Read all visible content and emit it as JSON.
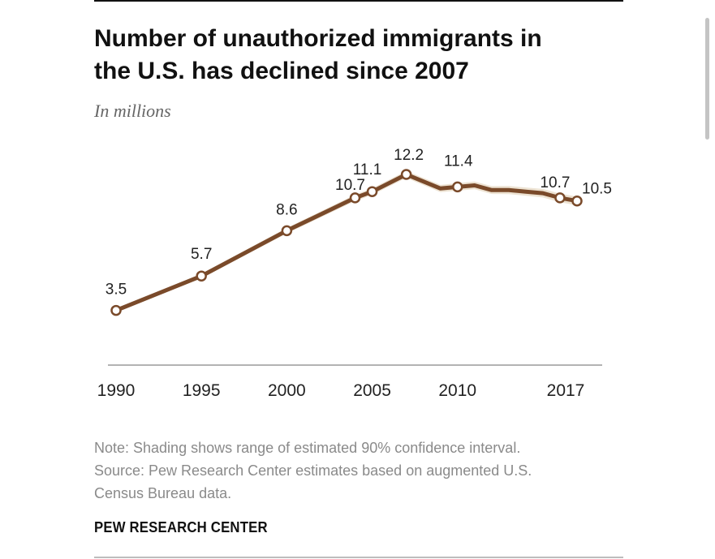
{
  "header": {
    "title_line1": "Number of unauthorized immigrants in",
    "title_line2": "the U.S. has declined since 2007",
    "subtitle": "In millions"
  },
  "chart_data": {
    "type": "line",
    "title": "Number of unauthorized immigrants in the U.S. has declined since 2007",
    "ylabel": "In millions",
    "xlabel": "",
    "x": [
      1990,
      1995,
      2000,
      2004,
      2005,
      2007,
      2009,
      2010,
      2011,
      2012,
      2013,
      2014,
      2015,
      2016,
      2017
    ],
    "series": [
      {
        "name": "Unauthorized immigrants (millions)",
        "values": [
          3.5,
          5.7,
          8.6,
          10.7,
          11.1,
          12.2,
          11.3,
          11.4,
          11.5,
          11.2,
          11.2,
          11.1,
          11.0,
          10.7,
          10.5
        ]
      }
    ],
    "data_labels": [
      {
        "x": 1990,
        "text": "3.5"
      },
      {
        "x": 1995,
        "text": "5.7"
      },
      {
        "x": 2000,
        "text": "8.6"
      },
      {
        "x": 2004,
        "text": "10.7"
      },
      {
        "x": 2005,
        "text": "11.1"
      },
      {
        "x": 2007,
        "text": "12.2"
      },
      {
        "x": 2010,
        "text": "11.4"
      },
      {
        "x": 2016,
        "text": "10.7"
      },
      {
        "x": 2017,
        "text": "10.5"
      }
    ],
    "marked_points": [
      1990,
      1995,
      2000,
      2004,
      2005,
      2007,
      2010,
      2016,
      2017
    ],
    "x_ticks": [
      {
        "value": 1990,
        "label": "1990"
      },
      {
        "value": 1995,
        "label": "1995"
      },
      {
        "value": 2000,
        "label": "2000"
      },
      {
        "value": 2005,
        "label": "2005"
      },
      {
        "value": 2010,
        "label": "2010"
      },
      {
        "value": 2017,
        "label": "2017"
      }
    ],
    "xlim": [
      1990,
      2017
    ],
    "ylim": [
      0,
      12.2
    ],
    "grid": false,
    "shading": "90% confidence interval",
    "colors": {
      "line": "#7a4a2a",
      "shading": "#ede3d3",
      "axis": "#9a9a9a",
      "marker_fill": "#ffffff"
    }
  },
  "footer": {
    "note_line1": "Note: Shading shows range of estimated 90% confidence interval.",
    "note_line2": "Source: Pew Research Center estimates based on augmented U.S.",
    "note_line3": "Census Bureau data.",
    "brand": "PEW RESEARCH CENTER"
  }
}
